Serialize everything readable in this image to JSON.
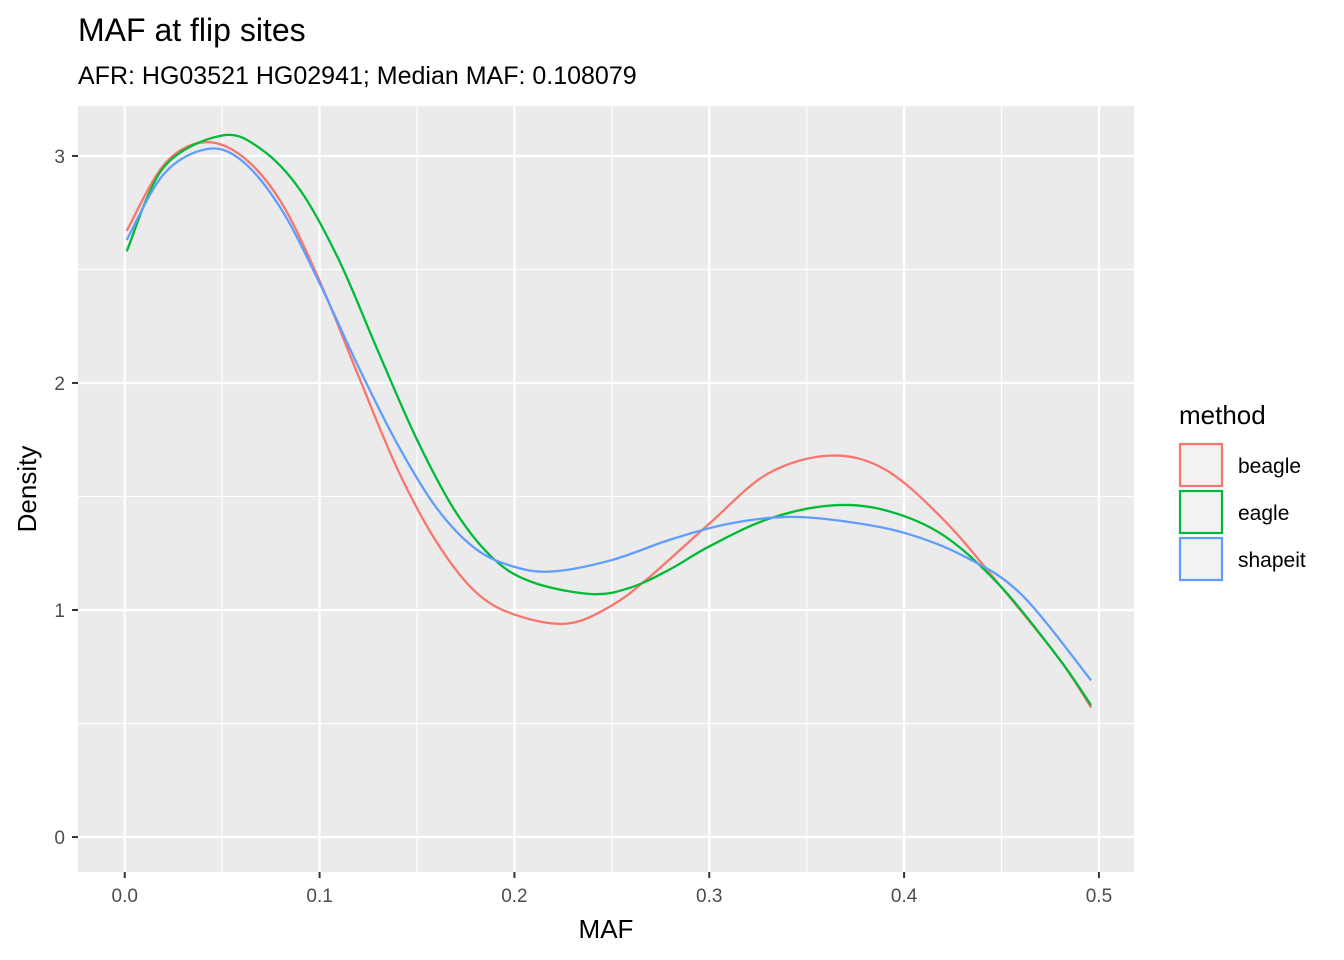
{
  "chart_data": {
    "type": "line",
    "title": "MAF at flip sites",
    "subtitle": "AFR: HG03521 HG02941; Median MAF: 0.108079",
    "xlabel": "MAF",
    "ylabel": "Density",
    "xlim": [
      -0.024,
      0.518
    ],
    "ylim": [
      -0.154,
      3.22
    ],
    "xticks": [
      0.0,
      0.1,
      0.2,
      0.3,
      0.4,
      0.5
    ],
    "xtick_labels": [
      "0.0",
      "0.1",
      "0.2",
      "0.3",
      "0.4",
      "0.5"
    ],
    "yticks": [
      0,
      1,
      2,
      3
    ],
    "ytick_labels": [
      "0",
      "1",
      "2",
      "3"
    ],
    "grid": true,
    "legend": {
      "title": "method",
      "position": "right"
    },
    "series": [
      {
        "name": "beagle",
        "color": "#F8766D",
        "x": [
          0.001,
          0.02,
          0.04,
          0.06,
          0.08,
          0.1,
          0.12,
          0.14,
          0.16,
          0.18,
          0.2,
          0.227,
          0.25,
          0.27,
          0.3,
          0.33,
          0.362,
          0.39,
          0.42,
          0.45,
          0.48,
          0.496
        ],
        "y": [
          2.67,
          2.96,
          3.06,
          3.0,
          2.8,
          2.45,
          2.03,
          1.62,
          1.3,
          1.08,
          0.98,
          0.94,
          1.02,
          1.15,
          1.38,
          1.6,
          1.68,
          1.62,
          1.4,
          1.1,
          0.78,
          0.57
        ]
      },
      {
        "name": "eagle",
        "color": "#00BA38",
        "x": [
          0.001,
          0.02,
          0.05,
          0.07,
          0.09,
          0.11,
          0.13,
          0.15,
          0.17,
          0.19,
          0.21,
          0.24,
          0.26,
          0.28,
          0.3,
          0.33,
          0.362,
          0.39,
          0.42,
          0.45,
          0.48,
          0.496
        ],
        "y": [
          2.58,
          2.95,
          3.09,
          3.03,
          2.85,
          2.54,
          2.14,
          1.75,
          1.43,
          1.22,
          1.12,
          1.07,
          1.1,
          1.18,
          1.28,
          1.4,
          1.46,
          1.44,
          1.33,
          1.1,
          0.78,
          0.58
        ]
      },
      {
        "name": "shapeit",
        "color": "#619CFF",
        "x": [
          0.001,
          0.02,
          0.042,
          0.06,
          0.08,
          0.1,
          0.12,
          0.14,
          0.16,
          0.18,
          0.2,
          0.22,
          0.25,
          0.28,
          0.31,
          0.34,
          0.37,
          0.4,
          0.43,
          0.46,
          0.496
        ],
        "y": [
          2.63,
          2.92,
          3.03,
          2.98,
          2.77,
          2.44,
          2.07,
          1.73,
          1.45,
          1.27,
          1.19,
          1.17,
          1.22,
          1.31,
          1.38,
          1.41,
          1.39,
          1.34,
          1.24,
          1.07,
          0.69
        ]
      }
    ]
  }
}
